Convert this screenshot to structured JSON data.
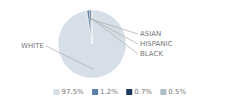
{
  "chart_data": {
    "type": "pie",
    "categories": [
      "WHITE",
      "ASIAN",
      "HISPANIC",
      "BLACK"
    ],
    "values": [
      97.5,
      1.2,
      0.7,
      0.5
    ],
    "value_labels": [
      "97.5%",
      "1.2%",
      "0.7%",
      "0.5%"
    ],
    "colors": [
      "#d6dfe8",
      "#5b7fa6",
      "#1b3a5c",
      "#b0bec8"
    ],
    "legend": "bottom"
  }
}
